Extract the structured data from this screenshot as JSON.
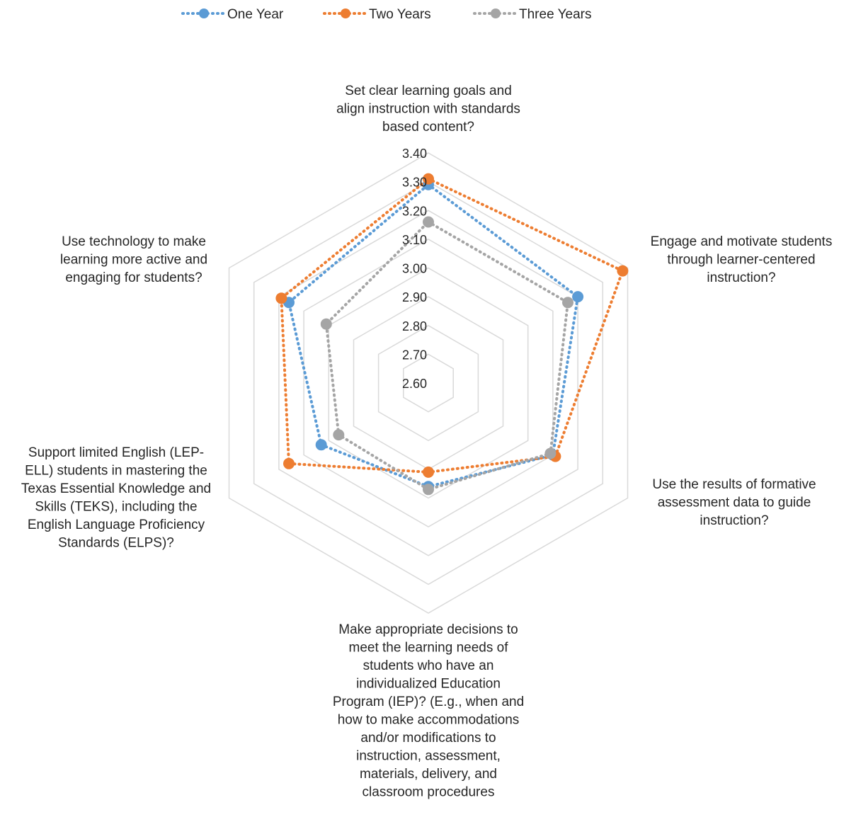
{
  "colors": {
    "grid": "#d9d9d9",
    "text": "#262626"
  },
  "chart_data": {
    "type": "radar",
    "title": "",
    "scale": {
      "min": 2.6,
      "max": 3.4,
      "step": 0.1
    },
    "tick_labels": [
      "2.60",
      "2.70",
      "2.80",
      "2.90",
      "3.00",
      "3.10",
      "3.20",
      "3.30",
      "3.40"
    ],
    "legend_position": "top",
    "grid": true,
    "categories": [
      [
        "Set clear learning goals and",
        "align instruction with standards",
        "based content?"
      ],
      [
        "Engage and motivate students",
        "through learner-centered",
        "instruction?"
      ],
      [
        "Use the results of formative",
        "assessment data to guide",
        "instruction?"
      ],
      [
        "Make appropriate decisions to",
        "meet the learning needs of",
        "students who have an",
        "individualized Education",
        "Program (IEP)? (E.g., when and",
        "how to make accommodations",
        "and/or modifications to",
        "instruction, assessment,",
        "materials, delivery, and",
        "classroom procedures"
      ],
      [
        "Support limited English (LEP-",
        "ELL) students in mastering the",
        "Texas Essential Knowledge and",
        "Skills (TEKS), including the",
        "English Language Proficiency",
        "Standards (ELPS)?"
      ],
      [
        "Use technology to make",
        "learning more active and",
        "engaging for students?"
      ]
    ],
    "series": [
      {
        "name": "One Year",
        "color": "#5b9bd5",
        "values": [
          3.29,
          3.2,
          3.1,
          2.96,
          3.03,
          3.16
        ]
      },
      {
        "name": "Two Years",
        "color": "#ed7d31",
        "values": [
          3.31,
          3.38,
          3.11,
          2.91,
          3.16,
          3.19
        ]
      },
      {
        "name": "Three Years",
        "color": "#a5a5a5",
        "values": [
          3.16,
          3.16,
          3.09,
          2.97,
          2.96,
          3.01
        ]
      }
    ]
  }
}
